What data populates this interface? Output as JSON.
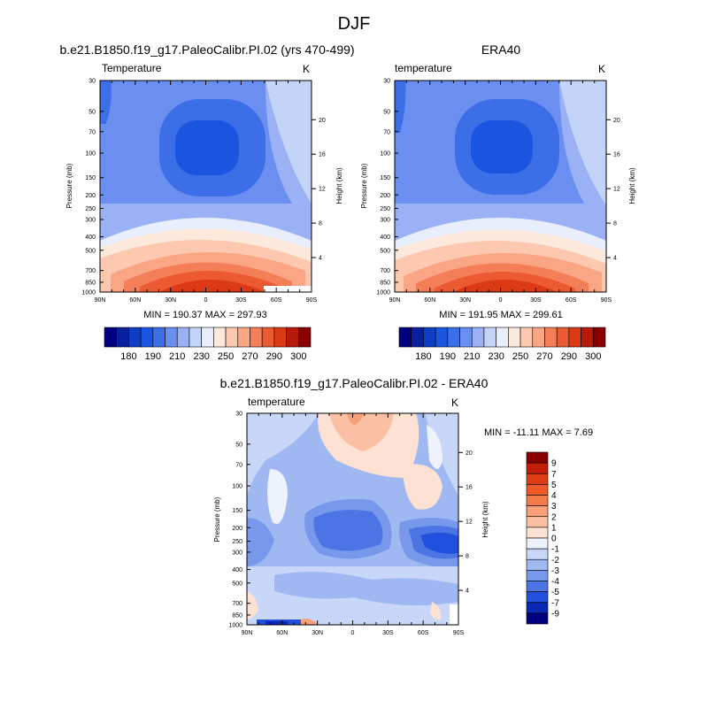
{
  "figure": {
    "title": "DJF"
  },
  "chart_data": [
    {
      "type": "heatmap",
      "title": "b.e21.B1850.f19_g17.PaleoCalibr.PI.02 (yrs 470-499)",
      "variable": "Temperature",
      "units": "K",
      "ylabel": "Pressure (mb)",
      "y2label": "Height (km)",
      "xticks": [
        "90N",
        "60N",
        "30N",
        "0",
        "30S",
        "60S",
        "90S"
      ],
      "yticks": [
        "30",
        "50",
        "70",
        "100",
        "150",
        "200",
        "250",
        "300",
        "400",
        "500",
        "700",
        "850",
        "1000"
      ],
      "y2ticks": [
        "20",
        "16",
        "12",
        "8",
        "4"
      ],
      "stats": "MIN = 190.37  MAX = 297.93",
      "colorbar": {
        "labels": [
          "180",
          "190",
          "210",
          "230",
          "250",
          "270",
          "290",
          "300"
        ],
        "colors": [
          "#000080",
          "#0a1ea0",
          "#0d3ec4",
          "#1a55e0",
          "#3c6ee8",
          "#6a8ff0",
          "#9ab2f5",
          "#c4d4f8",
          "#e8eefc",
          "#fde8dc",
          "#fcc9b0",
          "#faa584",
          "#f47e58",
          "#ec5a32",
          "#dc3a14",
          "#b81a0a",
          "#8a0000"
        ]
      }
    },
    {
      "type": "heatmap",
      "title": "ERA40",
      "variable": "temperature",
      "units": "K",
      "ylabel": "Pressure (mb)",
      "y2label": "Height (km)",
      "xticks": [
        "90N",
        "60N",
        "30N",
        "0",
        "30S",
        "60S",
        "90S"
      ],
      "yticks": [
        "30",
        "50",
        "70",
        "100",
        "150",
        "200",
        "250",
        "300",
        "400",
        "500",
        "700",
        "850",
        "1000"
      ],
      "y2ticks": [
        "20",
        "16",
        "12",
        "8",
        "4"
      ],
      "stats": "MIN = 191.95  MAX = 299.61",
      "colorbar": {
        "labels": [
          "180",
          "190",
          "210",
          "230",
          "250",
          "270",
          "290",
          "300"
        ],
        "colors": [
          "#000080",
          "#0a1ea0",
          "#0d3ec4",
          "#1a55e0",
          "#3c6ee8",
          "#6a8ff0",
          "#9ab2f5",
          "#c4d4f8",
          "#e8eefc",
          "#fde8dc",
          "#fcc9b0",
          "#faa584",
          "#f47e58",
          "#ec5a32",
          "#dc3a14",
          "#b81a0a",
          "#8a0000"
        ]
      }
    },
    {
      "type": "heatmap",
      "title": "b.e21.B1850.f19_g17.PaleoCalibr.PI.02 - ERA40",
      "variable": "temperature",
      "units": "K",
      "ylabel": "Pressure (mb)",
      "y2label": "Height (km)",
      "xticks": [
        "90N",
        "60N",
        "30N",
        "0",
        "30S",
        "60S",
        "90S"
      ],
      "yticks": [
        "30",
        "50",
        "70",
        "100",
        "150",
        "200",
        "250",
        "300",
        "400",
        "500",
        "700",
        "850",
        "1000"
      ],
      "y2ticks": [
        "20",
        "16",
        "12",
        "8",
        "4"
      ],
      "stats": "MIN = -11.11  MAX =   7.69",
      "colorbar": {
        "labels": [
          "9",
          "7",
          "5",
          "4",
          "3",
          "2",
          "1",
          "0",
          "-1",
          "-2",
          "-3",
          "-4",
          "-5",
          "-7",
          "-9"
        ],
        "colors": [
          "#8a0000",
          "#c41e0a",
          "#e03c14",
          "#f05a28",
          "#f47c4c",
          "#f89e78",
          "#fbc0a4",
          "#fde2d4",
          "#eef2fc",
          "#c8d6f8",
          "#a0b8f2",
          "#7898ec",
          "#4c74e4",
          "#2050dc",
          "#0a28b8",
          "#000080"
        ]
      }
    }
  ]
}
